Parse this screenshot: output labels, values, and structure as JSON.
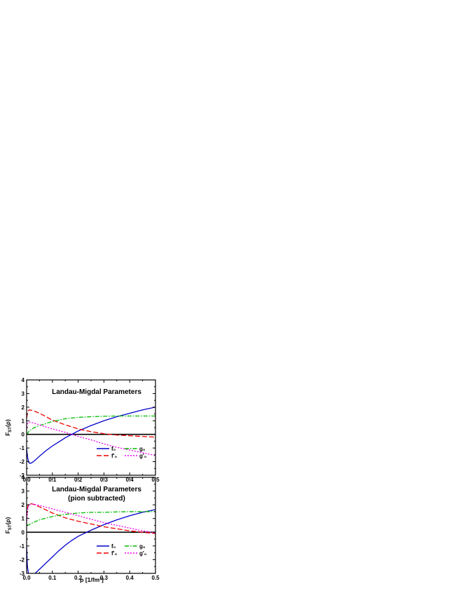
{
  "figure": {
    "xlabel": "ρ [1/fm³]"
  },
  "chart_data": [
    {
      "type": "line",
      "title": "Landau-Migdal Parameters",
      "ylabel": "F_{ST}(ρ)",
      "xlim": [
        0,
        0.5
      ],
      "ylim": [
        -3,
        4
      ],
      "xticks": [
        "0.0",
        "0.1",
        "0.2",
        "0.3",
        "0.4",
        "0.5"
      ],
      "yticks": [
        "-3",
        "-2",
        "-1",
        "0",
        "1",
        "2",
        "3",
        "4"
      ],
      "grid": false,
      "legend_position": "bottom-right",
      "series": [
        {
          "name": "f₀",
          "color": "#0000cc",
          "dash": "solid",
          "x": [
            0,
            0.003,
            0.007,
            0.01,
            0.015,
            0.02,
            0.03,
            0.05,
            0.075,
            0.1,
            0.125,
            0.15,
            0.175,
            0.2,
            0.25,
            0.3,
            0.35,
            0.4,
            0.45,
            0.5
          ],
          "y": [
            -1.0,
            -1.6,
            -2.0,
            -2.1,
            -2.12,
            -2.08,
            -1.95,
            -1.6,
            -1.2,
            -0.85,
            -0.55,
            -0.25,
            0.0,
            0.25,
            0.65,
            1.0,
            1.3,
            1.55,
            1.8,
            2.0
          ]
        },
        {
          "name": "f'₀",
          "color": "#ee0000",
          "dash": "dashed",
          "x": [
            0,
            0.005,
            0.01,
            0.025,
            0.05,
            0.075,
            0.1,
            0.15,
            0.2,
            0.25,
            0.3,
            0.35,
            0.4,
            0.45,
            0.5
          ],
          "y": [
            1.2,
            1.7,
            1.8,
            1.75,
            1.55,
            1.3,
            1.05,
            0.7,
            0.4,
            0.2,
            0.05,
            -0.05,
            -0.1,
            -0.15,
            -0.2
          ]
        },
        {
          "name": "g₀",
          "color": "#00bb00",
          "dash": "dashdot",
          "x": [
            0,
            0.01,
            0.025,
            0.05,
            0.1,
            0.15,
            0.2,
            0.25,
            0.3,
            0.35,
            0.4,
            0.45,
            0.5
          ],
          "y": [
            0.0,
            0.25,
            0.45,
            0.65,
            0.95,
            1.15,
            1.25,
            1.3,
            1.33,
            1.35,
            1.35,
            1.35,
            1.35
          ]
        },
        {
          "name": "g'₀",
          "color": "#ee00ee",
          "dash": "dotted",
          "x": [
            0,
            0.005,
            0.01,
            0.025,
            0.05,
            0.1,
            0.15,
            0.2,
            0.25,
            0.3,
            0.35,
            0.4,
            0.45,
            0.5
          ],
          "y": [
            0.55,
            0.85,
            0.9,
            0.85,
            0.7,
            0.4,
            0.15,
            -0.15,
            -0.4,
            -0.7,
            -0.95,
            -1.15,
            -1.35,
            -1.55
          ]
        }
      ]
    },
    {
      "type": "line",
      "title": "Landau-Migdal Parameters",
      "subtitle": "(pion subtracted)",
      "ylabel": "F_{ST}(ρ)",
      "xlim": [
        0,
        0.5
      ],
      "ylim": [
        -3,
        4
      ],
      "xticks": [
        "0.0",
        "0.1",
        "0.2",
        "0.3",
        "0.4",
        "0.5"
      ],
      "yticks": [
        "-3",
        "-2",
        "-1",
        "0",
        "1",
        "2",
        "3",
        "4"
      ],
      "grid": false,
      "legend_position": "bottom-right",
      "series": [
        {
          "name": "f₀",
          "color": "#0000cc",
          "dash": "solid",
          "x": [
            0,
            0.003,
            0.007,
            0.01,
            0.015,
            0.02,
            0.03,
            0.05,
            0.075,
            0.1,
            0.125,
            0.15,
            0.175,
            0.2,
            0.25,
            0.3,
            0.35,
            0.4,
            0.45,
            0.5
          ],
          "y": [
            -1.0,
            -2.5,
            -3.0,
            -3.15,
            -3.2,
            -3.18,
            -3.05,
            -2.7,
            -2.25,
            -1.8,
            -1.35,
            -0.95,
            -0.6,
            -0.3,
            0.15,
            0.55,
            0.9,
            1.2,
            1.45,
            1.65
          ]
        },
        {
          "name": "f'₀",
          "color": "#ee0000",
          "dash": "dashed",
          "x": [
            0,
            0.005,
            0.01,
            0.025,
            0.05,
            0.1,
            0.15,
            0.2,
            0.25,
            0.3,
            0.35,
            0.4,
            0.45,
            0.5
          ],
          "y": [
            1.2,
            1.9,
            2.1,
            2.05,
            1.85,
            1.4,
            1.05,
            0.8,
            0.6,
            0.4,
            0.25,
            0.1,
            0.0,
            -0.1
          ]
        },
        {
          "name": "g₀",
          "color": "#00bb00",
          "dash": "dashdot",
          "x": [
            0,
            0.01,
            0.025,
            0.05,
            0.1,
            0.15,
            0.2,
            0.25,
            0.3,
            0.35,
            0.4,
            0.45,
            0.5
          ],
          "y": [
            0.5,
            0.55,
            0.7,
            0.9,
            1.15,
            1.3,
            1.4,
            1.45,
            1.45,
            1.48,
            1.5,
            1.5,
            1.5
          ]
        },
        {
          "name": "g'₀",
          "color": "#ee00ee",
          "dash": "dotted",
          "x": [
            0,
            0.005,
            0.01,
            0.025,
            0.05,
            0.1,
            0.15,
            0.2,
            0.25,
            0.3,
            0.35,
            0.4,
            0.45,
            0.5
          ],
          "y": [
            0.6,
            1.8,
            2.0,
            2.05,
            1.95,
            1.7,
            1.45,
            1.2,
            0.95,
            0.7,
            0.5,
            0.3,
            0.1,
            -0.05
          ]
        }
      ]
    }
  ]
}
